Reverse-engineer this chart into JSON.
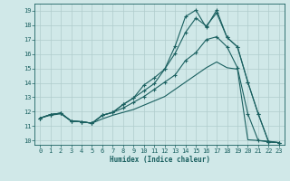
{
  "xlabel": "Humidex (Indice chaleur)",
  "background_color": "#d0e8e8",
  "grid_color": "#b0cccc",
  "line_color": "#1a6060",
  "xlim": [
    -0.5,
    23.5
  ],
  "ylim": [
    9.7,
    19.5
  ],
  "xticks": [
    0,
    1,
    2,
    3,
    4,
    5,
    6,
    7,
    8,
    9,
    10,
    11,
    12,
    13,
    14,
    15,
    16,
    17,
    18,
    19,
    20,
    21,
    22,
    23
  ],
  "yticks": [
    10,
    11,
    12,
    13,
    14,
    15,
    16,
    17,
    18,
    19
  ],
  "line1_x": [
    0,
    1,
    2,
    3,
    4,
    5,
    6,
    7,
    8,
    9,
    10,
    11,
    12,
    13,
    14,
    15,
    16,
    17,
    18,
    19,
    20,
    21,
    22,
    23
  ],
  "line1_y": [
    11.55,
    11.75,
    11.85,
    11.35,
    11.3,
    11.2,
    11.5,
    11.75,
    11.95,
    12.15,
    12.45,
    12.75,
    13.05,
    13.55,
    14.05,
    14.55,
    15.05,
    15.45,
    15.05,
    14.95,
    10.05,
    10.0,
    9.95,
    9.85
  ],
  "line2_x": [
    0,
    1,
    2,
    3,
    4,
    5,
    6,
    7,
    8,
    9,
    10,
    11,
    12,
    13,
    14,
    15,
    16,
    17,
    18,
    19,
    20,
    21,
    22,
    23
  ],
  "line2_y": [
    11.55,
    11.8,
    11.9,
    11.35,
    11.3,
    11.2,
    11.75,
    11.95,
    12.25,
    12.65,
    13.05,
    13.55,
    14.05,
    14.55,
    15.55,
    16.1,
    17.0,
    17.2,
    16.5,
    15.05,
    11.85,
    10.0,
    9.9,
    9.85
  ],
  "line3_x": [
    0,
    1,
    2,
    3,
    4,
    5,
    6,
    7,
    8,
    9,
    10,
    11,
    12,
    13,
    14,
    15,
    16,
    17,
    18,
    19,
    20,
    21,
    22,
    23
  ],
  "line3_y": [
    11.55,
    11.8,
    11.9,
    11.35,
    11.3,
    11.2,
    11.75,
    11.95,
    12.5,
    12.95,
    13.45,
    13.95,
    14.95,
    16.05,
    17.5,
    18.5,
    17.95,
    18.85,
    17.15,
    16.5,
    14.05,
    11.85,
    9.9,
    9.85
  ],
  "line4_x": [
    0,
    1,
    2,
    3,
    4,
    5,
    6,
    7,
    8,
    9,
    10,
    11,
    12,
    13,
    14,
    15,
    16,
    17,
    18,
    19,
    20,
    21,
    22,
    23
  ],
  "line4_y": [
    11.55,
    11.8,
    11.9,
    11.35,
    11.3,
    11.2,
    11.75,
    11.95,
    12.5,
    12.95,
    13.85,
    14.35,
    14.95,
    16.55,
    18.6,
    19.05,
    17.85,
    19.05,
    17.15,
    16.5,
    14.05,
    11.85,
    9.9,
    9.85
  ]
}
